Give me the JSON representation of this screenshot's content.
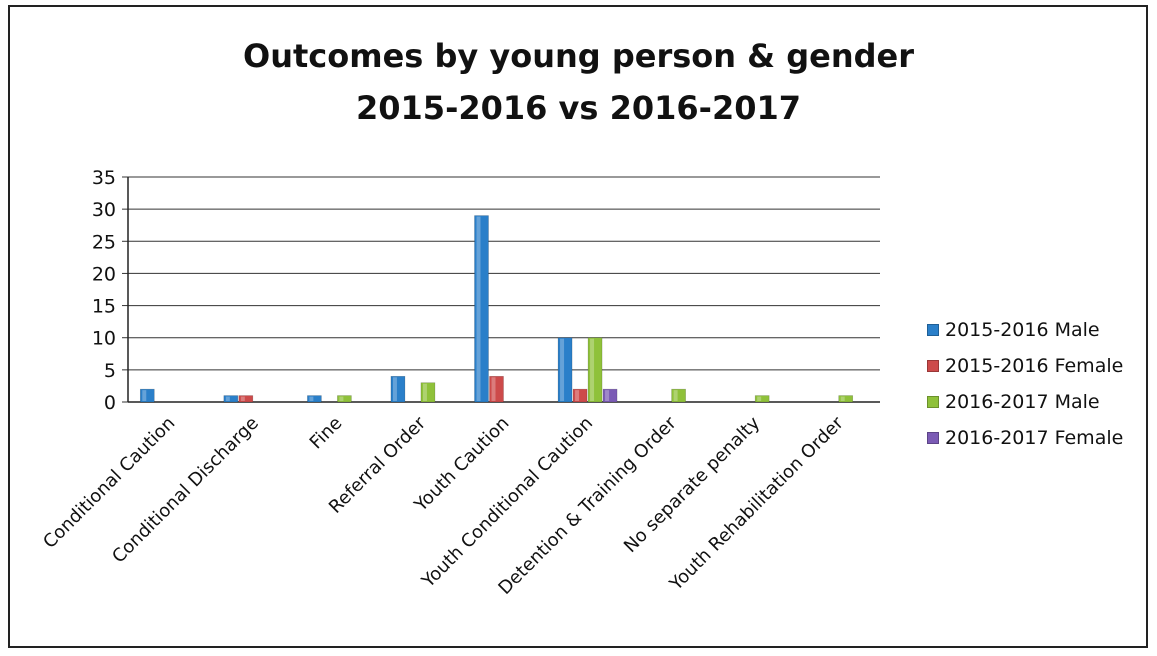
{
  "chart_data": {
    "type": "bar",
    "title_lines": [
      "Outcomes by young person & gender",
      "2015-2016 vs 2016-2017"
    ],
    "categories": [
      "Conditional Caution",
      "Conditional Discharge",
      "Fine",
      "Referral Order",
      "Youth Caution",
      "Youth Conditional Caution",
      "Detention & Training Order",
      "No separate penalty",
      "Youth Rehabilitation Order"
    ],
    "series": [
      {
        "name": "2015-2016 Male",
        "color": "#2a7fc9",
        "values": [
          2,
          1,
          1,
          4,
          29,
          10,
          0,
          0,
          0
        ]
      },
      {
        "name": "2015-2016 Female",
        "color": "#cd4a4a",
        "values": [
          0,
          1,
          0,
          0,
          4,
          2,
          0,
          0,
          0
        ]
      },
      {
        "name": "2016-2017 Male",
        "color": "#8fc13a",
        "values": [
          0,
          0,
          1,
          3,
          0,
          10,
          2,
          1,
          1
        ]
      },
      {
        "name": "2016-2017 Female",
        "color": "#7b5bb5",
        "values": [
          0,
          0,
          0,
          0,
          0,
          2,
          0,
          0,
          0
        ]
      }
    ],
    "ylim": [
      0,
      35
    ],
    "yticks": [
      "0",
      "5",
      "10",
      "15",
      "20",
      "25",
      "30",
      "35"
    ],
    "grid": true,
    "legend_position": "right"
  }
}
